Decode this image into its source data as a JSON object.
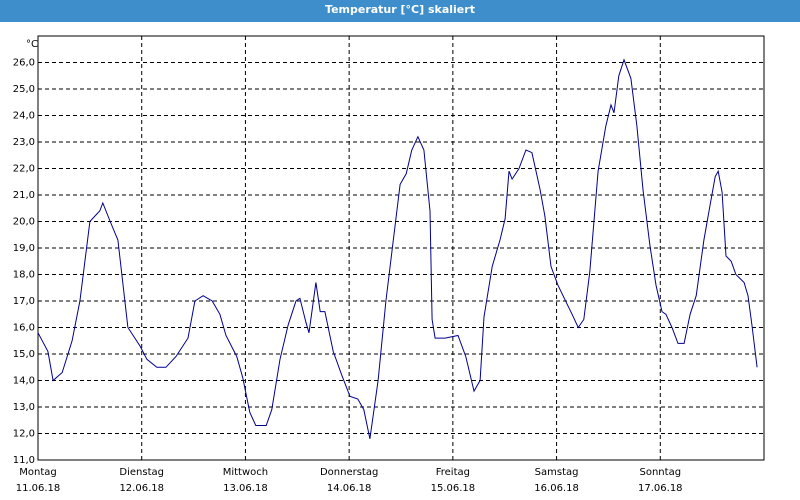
{
  "chart_data": {
    "type": "line",
    "title": "Temperatur [°C] skaliert",
    "y_unit": "°C",
    "xlim": [
      0,
      168
    ],
    "ylim": [
      11,
      27
    ],
    "xticks": [
      {
        "value": 0,
        "label": "Montag",
        "date": "11.06.18"
      },
      {
        "value": 24,
        "label": "Dienstag",
        "date": "12.06.18"
      },
      {
        "value": 48,
        "label": "Mittwoch",
        "date": "13.06.18"
      },
      {
        "value": 72,
        "label": "Donnerstag",
        "date": "14.06.18"
      },
      {
        "value": 96,
        "label": "Freitag",
        "date": "15.06.18"
      },
      {
        "value": 120,
        "label": "Samstag",
        "date": "16.06.18"
      },
      {
        "value": 144,
        "label": "Sonntag",
        "date": "17.06.18"
      }
    ],
    "yticks": [
      {
        "value": 11,
        "label": "11,0"
      },
      {
        "value": 12,
        "label": "12,0"
      },
      {
        "value": 13,
        "label": "13,0"
      },
      {
        "value": 14,
        "label": "14,0"
      },
      {
        "value": 15,
        "label": "15,0"
      },
      {
        "value": 16,
        "label": "16,0"
      },
      {
        "value": 17,
        "label": "17,0"
      },
      {
        "value": 18,
        "label": "18,0"
      },
      {
        "value": 19,
        "label": "19,0"
      },
      {
        "value": 20,
        "label": "20,0"
      },
      {
        "value": 21,
        "label": "21,0"
      },
      {
        "value": 22,
        "label": "22,0"
      },
      {
        "value": 23,
        "label": "23,0"
      },
      {
        "value": 24,
        "label": "24,0"
      },
      {
        "value": 25,
        "label": "25,0"
      },
      {
        "value": 26,
        "label": "26,0"
      }
    ],
    "grid": true,
    "x": [
      0,
      2.3,
      3.5,
      5.6,
      7.9,
      9.7,
      12.0,
      14.3,
      15.0,
      16.7,
      18.5,
      20.8,
      23.6,
      25.2,
      27.5,
      29.6,
      31.9,
      34.7,
      36.3,
      38.2,
      40.3,
      42.1,
      43.5,
      46.0,
      47.4,
      49.0,
      50.4,
      52.8,
      54.1,
      56.0,
      57.9,
      59.7,
      60.6,
      62.0,
      62.7,
      64.3,
      65.3,
      66.4,
      68.3,
      70.3,
      72.2,
      74.0,
      75.4,
      76.8,
      78.7,
      80.5,
      83.8,
      85.2,
      86.5,
      87.9,
      89.3,
      90.7,
      91.2,
      91.9,
      94.2,
      97.2,
      99.0,
      100.9,
      102.3,
      103.2,
      105.1,
      106.9,
      108.1,
      109.0,
      109.7,
      111.3,
      112.9,
      114.3,
      116.2,
      117.3,
      118.7,
      120.3,
      122.4,
      123.6,
      125.0,
      126.3,
      127.7,
      129.6,
      131.4,
      132.6,
      133.3,
      134.4,
      135.6,
      137.2,
      138.6,
      140.0,
      141.6,
      143.0,
      144.4,
      145.3,
      146.7,
      148.1,
      149.5,
      150.9,
      152.3,
      154.1,
      155.5,
      156.7,
      157.4,
      158.3,
      159.2,
      160.4,
      161.5,
      163.4,
      164.3,
      165.2,
      166.4
    ],
    "series": [
      {
        "color": "#000090",
        "values": [
          15.8,
          15.1,
          14.0,
          14.3,
          15.5,
          17.0,
          20.0,
          20.4,
          20.7,
          20.0,
          19.3,
          16.0,
          15.3,
          14.8,
          14.5,
          14.5,
          14.9,
          15.6,
          17.0,
          17.2,
          17.0,
          16.5,
          15.7,
          14.9,
          14.1,
          12.8,
          12.3,
          12.3,
          12.9,
          14.8,
          16.1,
          17.0,
          17.1,
          16.2,
          15.8,
          17.7,
          16.6,
          16.6,
          15.1,
          14.2,
          13.4,
          13.3,
          12.9,
          11.8,
          14.0,
          17.0,
          21.4,
          21.8,
          22.7,
          23.2,
          22.7,
          20.4,
          16.3,
          15.6,
          15.6,
          15.7,
          14.9,
          13.6,
          14.0,
          16.4,
          18.3,
          19.3,
          20.1,
          21.9,
          21.6,
          22.0,
          22.7,
          22.6,
          21.2,
          20.2,
          18.3,
          17.6,
          16.9,
          16.5,
          16.0,
          16.3,
          18.1,
          21.9,
          23.6,
          24.4,
          24.1,
          25.5,
          26.1,
          25.4,
          23.6,
          21.2,
          19.1,
          17.6,
          16.6,
          16.5,
          16.0,
          15.4,
          15.4,
          16.5,
          17.2,
          19.3,
          20.6,
          21.7,
          21.9,
          21.1,
          18.7,
          18.5,
          18.0,
          17.7,
          17.2,
          16.1,
          14.5
        ]
      }
    ]
  }
}
